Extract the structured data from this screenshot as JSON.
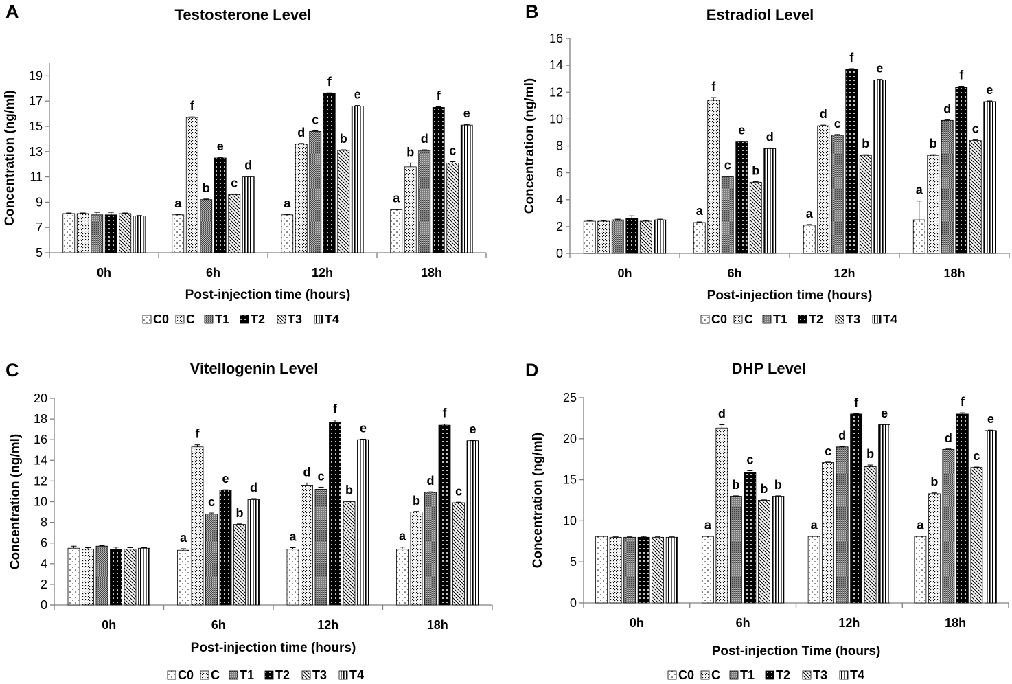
{
  "series_names": [
    "C0",
    "C",
    "T1",
    "T2",
    "T3",
    "T4"
  ],
  "chart_data": [
    {
      "type": "bar",
      "panel": "A",
      "title": "Testosterone Level",
      "xlabel": "Post-injection time (hours)",
      "ylabel": "Concentration (ng/ml)",
      "ylim": [
        5,
        20
      ],
      "yticks": [
        5,
        7,
        9,
        11,
        13,
        15,
        17,
        19
      ],
      "categories": [
        "0h",
        "6h",
        "12h",
        "18h"
      ],
      "series": [
        {
          "name": "C0",
          "values": [
            8.1,
            8.0,
            8.0,
            8.4
          ],
          "errors": [
            0.05,
            0.05,
            0.05,
            0.05
          ],
          "labels": [
            "",
            "a",
            "a",
            "a"
          ]
        },
        {
          "name": "C",
          "values": [
            8.1,
            15.7,
            13.6,
            11.8
          ],
          "errors": [
            0.05,
            0.05,
            0.05,
            0.3
          ],
          "labels": [
            "",
            "f",
            "d",
            "b"
          ]
        },
        {
          "name": "T1",
          "values": [
            8.0,
            9.2,
            14.6,
            13.1
          ],
          "errors": [
            0.2,
            0.05,
            0.05,
            0.05
          ],
          "labels": [
            "",
            "b",
            "c",
            "d"
          ]
        },
        {
          "name": "T2",
          "values": [
            8.0,
            12.5,
            17.6,
            16.5
          ],
          "errors": [
            0.2,
            0.05,
            0.05,
            0.05
          ],
          "labels": [
            "",
            "e",
            "f",
            "f"
          ]
        },
        {
          "name": "T3",
          "values": [
            8.1,
            9.6,
            13.1,
            12.1
          ],
          "errors": [
            0.05,
            0.05,
            0.05,
            0.1
          ],
          "labels": [
            "",
            "c",
            "b",
            "c"
          ]
        },
        {
          "name": "T4",
          "values": [
            7.9,
            11.0,
            16.6,
            15.1
          ],
          "errors": [
            0.05,
            0.05,
            0.05,
            0.05
          ],
          "labels": [
            "",
            "d",
            "e",
            "e"
          ]
        }
      ]
    },
    {
      "type": "bar",
      "panel": "B",
      "title": "Estradiol Level",
      "xlabel": "Post-injection time (hours)",
      "ylabel": "Concentration (ng/ml)",
      "ylim": [
        0,
        16
      ],
      "yticks": [
        0,
        2,
        4,
        6,
        8,
        10,
        12,
        14,
        16
      ],
      "categories": [
        "0h",
        "6h",
        "12h",
        "18h"
      ],
      "series": [
        {
          "name": "C0",
          "values": [
            2.4,
            2.3,
            2.1,
            2.5
          ],
          "errors": [
            0.05,
            0.05,
            0.05,
            1.4
          ],
          "labels": [
            "",
            "a",
            "a",
            "a"
          ]
        },
        {
          "name": "C",
          "values": [
            2.4,
            11.4,
            9.5,
            7.3
          ],
          "errors": [
            0.05,
            0.2,
            0.05,
            0.05
          ],
          "labels": [
            "",
            "f",
            "d",
            "b"
          ]
        },
        {
          "name": "T1",
          "values": [
            2.5,
            5.7,
            8.8,
            9.9
          ],
          "errors": [
            0.05,
            0.05,
            0.05,
            0.05
          ],
          "labels": [
            "",
            "c",
            "c",
            "d"
          ]
        },
        {
          "name": "T2",
          "values": [
            2.6,
            8.3,
            13.7,
            12.4
          ],
          "errors": [
            0.2,
            0.05,
            0.05,
            0.05
          ],
          "labels": [
            "",
            "e",
            "f",
            "f"
          ]
        },
        {
          "name": "T3",
          "values": [
            2.4,
            5.3,
            7.3,
            8.4
          ],
          "errors": [
            0.05,
            0.05,
            0.05,
            0.05
          ],
          "labels": [
            "",
            "b",
            "b",
            "c"
          ]
        },
        {
          "name": "T4",
          "values": [
            2.5,
            7.8,
            12.9,
            11.3
          ],
          "errors": [
            0.05,
            0.05,
            0.05,
            0.05
          ],
          "labels": [
            "",
            "d",
            "e",
            "e"
          ]
        }
      ]
    },
    {
      "type": "bar",
      "panel": "C",
      "title": "Vitellogenin Level",
      "xlabel": "Post-injection time (hours)",
      "ylabel": "Concentration (ng/ml)",
      "ylim": [
        0,
        20
      ],
      "yticks": [
        0,
        2,
        4,
        6,
        8,
        10,
        12,
        14,
        16,
        18,
        20
      ],
      "categories": [
        "0h",
        "6h",
        "12h",
        "18h"
      ],
      "series": [
        {
          "name": "C0",
          "values": [
            5.5,
            5.3,
            5.4,
            5.4
          ],
          "errors": [
            0.2,
            0.15,
            0.15,
            0.2
          ],
          "labels": [
            "",
            "a",
            "a",
            "a"
          ]
        },
        {
          "name": "C",
          "values": [
            5.4,
            15.3,
            11.6,
            9.0
          ],
          "errors": [
            0.15,
            0.2,
            0.2,
            0.05
          ],
          "labels": [
            "",
            "f",
            "d",
            "b"
          ]
        },
        {
          "name": "T1",
          "values": [
            5.7,
            8.8,
            11.2,
            10.9
          ],
          "errors": [
            0.05,
            0.1,
            0.2,
            0.05
          ],
          "labels": [
            "",
            "c",
            "c",
            "d"
          ]
        },
        {
          "name": "T2",
          "values": [
            5.4,
            11.1,
            17.7,
            17.4
          ],
          "errors": [
            0.2,
            0.05,
            0.2,
            0.1
          ],
          "labels": [
            "",
            "e",
            "f",
            "f"
          ]
        },
        {
          "name": "T3",
          "values": [
            5.4,
            7.8,
            10.0,
            9.9
          ],
          "errors": [
            0.15,
            0.05,
            0.05,
            0.05
          ],
          "labels": [
            "",
            "b",
            "b",
            "c"
          ]
        },
        {
          "name": "T4",
          "values": [
            5.5,
            10.2,
            16.0,
            15.9
          ],
          "errors": [
            0.05,
            0.1,
            0.05,
            0.05
          ],
          "labels": [
            "",
            "d",
            "e",
            "e"
          ]
        }
      ]
    },
    {
      "type": "bar",
      "panel": "D",
      "title": "DHP Level",
      "xlabel": "Post-injection Time (hours)",
      "ylabel": "Concentration (ng/ml)",
      "ylim": [
        0,
        25
      ],
      "yticks": [
        0,
        5,
        10,
        15,
        20,
        25
      ],
      "categories": [
        "0h",
        "6h",
        "12h",
        "18h"
      ],
      "series": [
        {
          "name": "C0",
          "values": [
            8.1,
            8.1,
            8.1,
            8.1
          ],
          "errors": [
            0.05,
            0.05,
            0.05,
            0.05
          ],
          "labels": [
            "",
            "a",
            "a",
            "a"
          ]
        },
        {
          "name": "C",
          "values": [
            8.0,
            21.3,
            17.1,
            13.3
          ],
          "errors": [
            0.05,
            0.4,
            0.05,
            0.1
          ],
          "labels": [
            "",
            "d",
            "c",
            "b"
          ]
        },
        {
          "name": "T1",
          "values": [
            8.0,
            13.0,
            19.0,
            18.7
          ],
          "errors": [
            0.05,
            0.05,
            0.05,
            0.05
          ],
          "labels": [
            "",
            "b",
            "d",
            "d"
          ]
        },
        {
          "name": "T2",
          "values": [
            8.0,
            15.9,
            23.0,
            23.0
          ],
          "errors": [
            0.1,
            0.2,
            0.05,
            0.15
          ],
          "labels": [
            "",
            "c",
            "f",
            "f"
          ]
        },
        {
          "name": "T3",
          "values": [
            8.0,
            12.5,
            16.6,
            16.5
          ],
          "errors": [
            0.05,
            0.05,
            0.2,
            0.05
          ],
          "labels": [
            "",
            "b",
            "b",
            "c"
          ]
        },
        {
          "name": "T4",
          "values": [
            8.0,
            13.0,
            21.7,
            21.0
          ],
          "errors": [
            0.05,
            0.05,
            0.05,
            0.05
          ],
          "labels": [
            "",
            "b",
            "e",
            "e"
          ]
        }
      ]
    }
  ]
}
